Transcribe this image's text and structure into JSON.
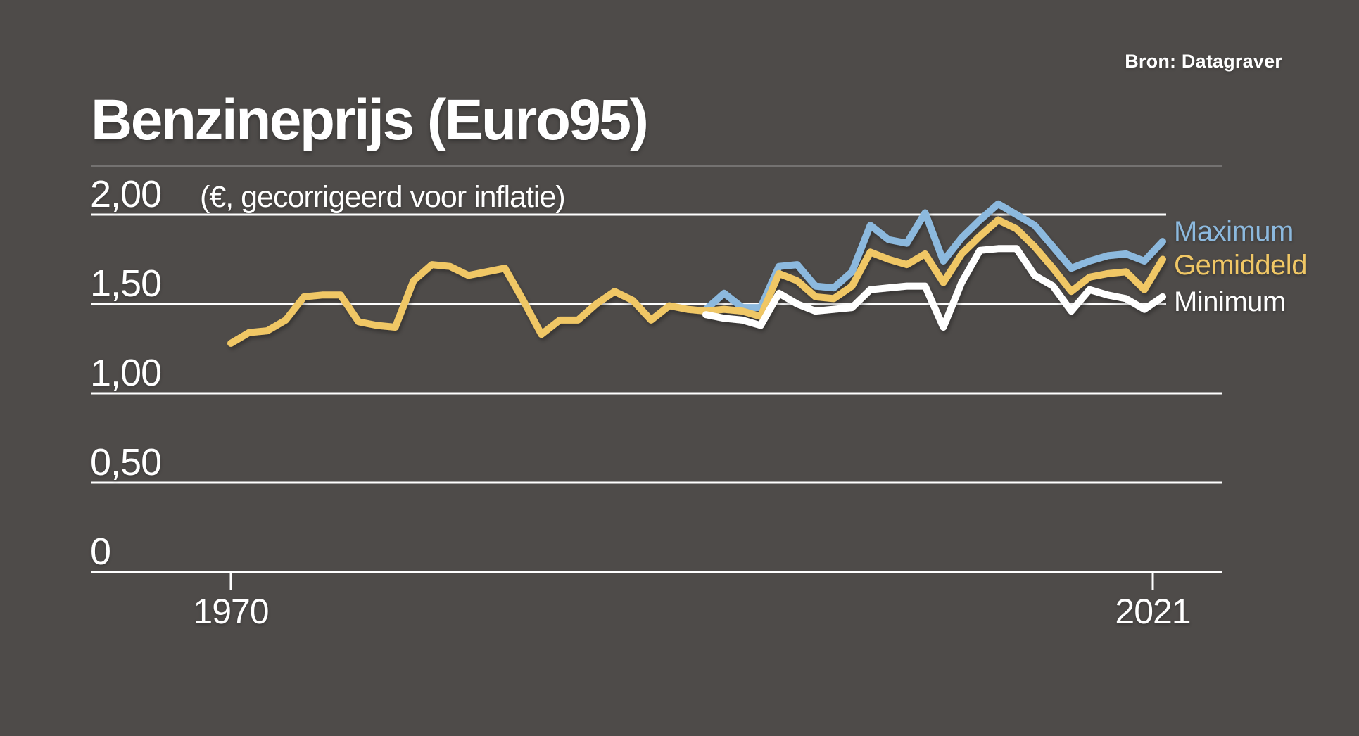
{
  "title": "Benzineprijs (Euro95)",
  "subtitle": "(€, gecorrigeerd voor inflatie)",
  "source": {
    "label": "Bron: Datagraver"
  },
  "colors": {
    "background": "#4e4b49",
    "text": "#ffffff",
    "gridline": "#ffffff",
    "maximum": "#8cb9de",
    "gemiddeld": "#f0c765",
    "minimum": "#ffffff"
  },
  "chart_data": {
    "type": "line",
    "title": "Benzineprijs (Euro95)",
    "ylabel": "(€, gecorrigeerd voor inflatie)",
    "xlabel": "",
    "grid": true,
    "legend_position": "right",
    "xlim": [
      1970,
      2021
    ],
    "ylim": [
      0,
      2.25
    ],
    "yticks": [
      {
        "value": 2.0,
        "label": "2,00"
      },
      {
        "value": 1.5,
        "label": "1,50"
      },
      {
        "value": 1.0,
        "label": "1,00"
      },
      {
        "value": 0.5,
        "label": "0,50"
      },
      {
        "value": 0.0,
        "label": "0"
      }
    ],
    "xticks": [
      {
        "year": 1970,
        "label": "1970"
      },
      {
        "year": 2021,
        "label": "2021"
      }
    ],
    "series": [
      {
        "name": "Maximum",
        "color": "#8cb9de",
        "start_year": 1996,
        "values": [
          1.47,
          1.56,
          1.48,
          1.48,
          1.71,
          1.72,
          1.6,
          1.59,
          1.68,
          1.94,
          1.86,
          1.84,
          2.01,
          1.74,
          1.87,
          1.97,
          2.06,
          2.0,
          1.94,
          1.82,
          1.7,
          1.74,
          1.77,
          1.78,
          1.74,
          1.85
        ]
      },
      {
        "name": "Gemiddeld",
        "color": "#f0c765",
        "start_year": 1970,
        "values": [
          1.28,
          1.34,
          1.35,
          1.41,
          1.54,
          1.55,
          1.55,
          1.4,
          1.38,
          1.37,
          1.63,
          1.72,
          1.71,
          1.66,
          1.68,
          1.7,
          1.52,
          1.33,
          1.41,
          1.41,
          1.5,
          1.57,
          1.52,
          1.41,
          1.49,
          1.47,
          1.46,
          1.47,
          1.46,
          1.43,
          1.67,
          1.63,
          1.54,
          1.53,
          1.6,
          1.79,
          1.75,
          1.72,
          1.78,
          1.62,
          1.78,
          1.88,
          1.97,
          1.92,
          1.82,
          1.7,
          1.57,
          1.65,
          1.67,
          1.68,
          1.58,
          1.75
        ]
      },
      {
        "name": "Minimum",
        "color": "#ffffff",
        "start_year": 1996,
        "values": [
          1.44,
          1.42,
          1.41,
          1.38,
          1.56,
          1.5,
          1.46,
          1.47,
          1.48,
          1.58,
          1.59,
          1.6,
          1.6,
          1.37,
          1.62,
          1.8,
          1.81,
          1.81,
          1.66,
          1.6,
          1.46,
          1.58,
          1.55,
          1.53,
          1.47,
          1.54
        ]
      }
    ]
  }
}
